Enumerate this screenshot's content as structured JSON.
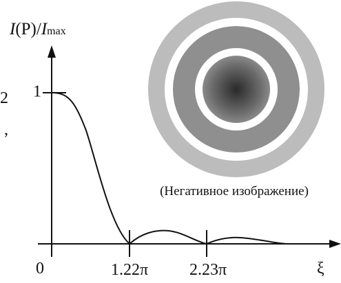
{
  "y_axis_label": {
    "symbol": "I",
    "middle": "(P)/",
    "symbol2": "I",
    "subscript": "max"
  },
  "y_tick": "1",
  "origin": "0",
  "x_ticks": [
    "1.22π",
    "2.23π"
  ],
  "x_axis_label": "ξ",
  "caption": "(Негативное изображение)",
  "margin_text": [
    "2",
    ","
  ]
}
